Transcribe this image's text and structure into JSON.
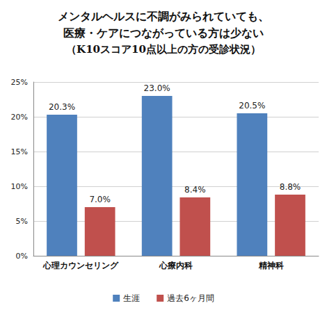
{
  "chart_data": {
    "type": "bar",
    "title": "メンタルヘルスに不調がみられていても、\n医療・ケアにつながっている方は少ない",
    "subtitle": "（K10スコア10点以上の方の受診状況）",
    "categories": [
      "心理カウンセリング",
      "心療内科",
      "精神科"
    ],
    "series": [
      {
        "name": "生涯",
        "color": "#4f81bd",
        "values": [
          20.3,
          23.0,
          20.5
        ],
        "value_labels": [
          "20.3%",
          "23.0%",
          "20.5%"
        ]
      },
      {
        "name": "過去6ヶ月間",
        "color": "#c0504d",
        "values": [
          7.0,
          8.4,
          8.8
        ],
        "value_labels": [
          "7.0%",
          "8.4%",
          "8.8%"
        ]
      }
    ],
    "ylim": [
      0,
      25
    ],
    "yticks": [
      {
        "value": 0,
        "label": "0%"
      },
      {
        "value": 5,
        "label": "5%"
      },
      {
        "value": 10,
        "label": "10%"
      },
      {
        "value": 15,
        "label": "15%"
      },
      {
        "value": 20,
        "label": "20%"
      },
      {
        "value": 25,
        "label": "25%"
      }
    ],
    "grid": true,
    "legend": "bottom",
    "data_labels": true
  }
}
